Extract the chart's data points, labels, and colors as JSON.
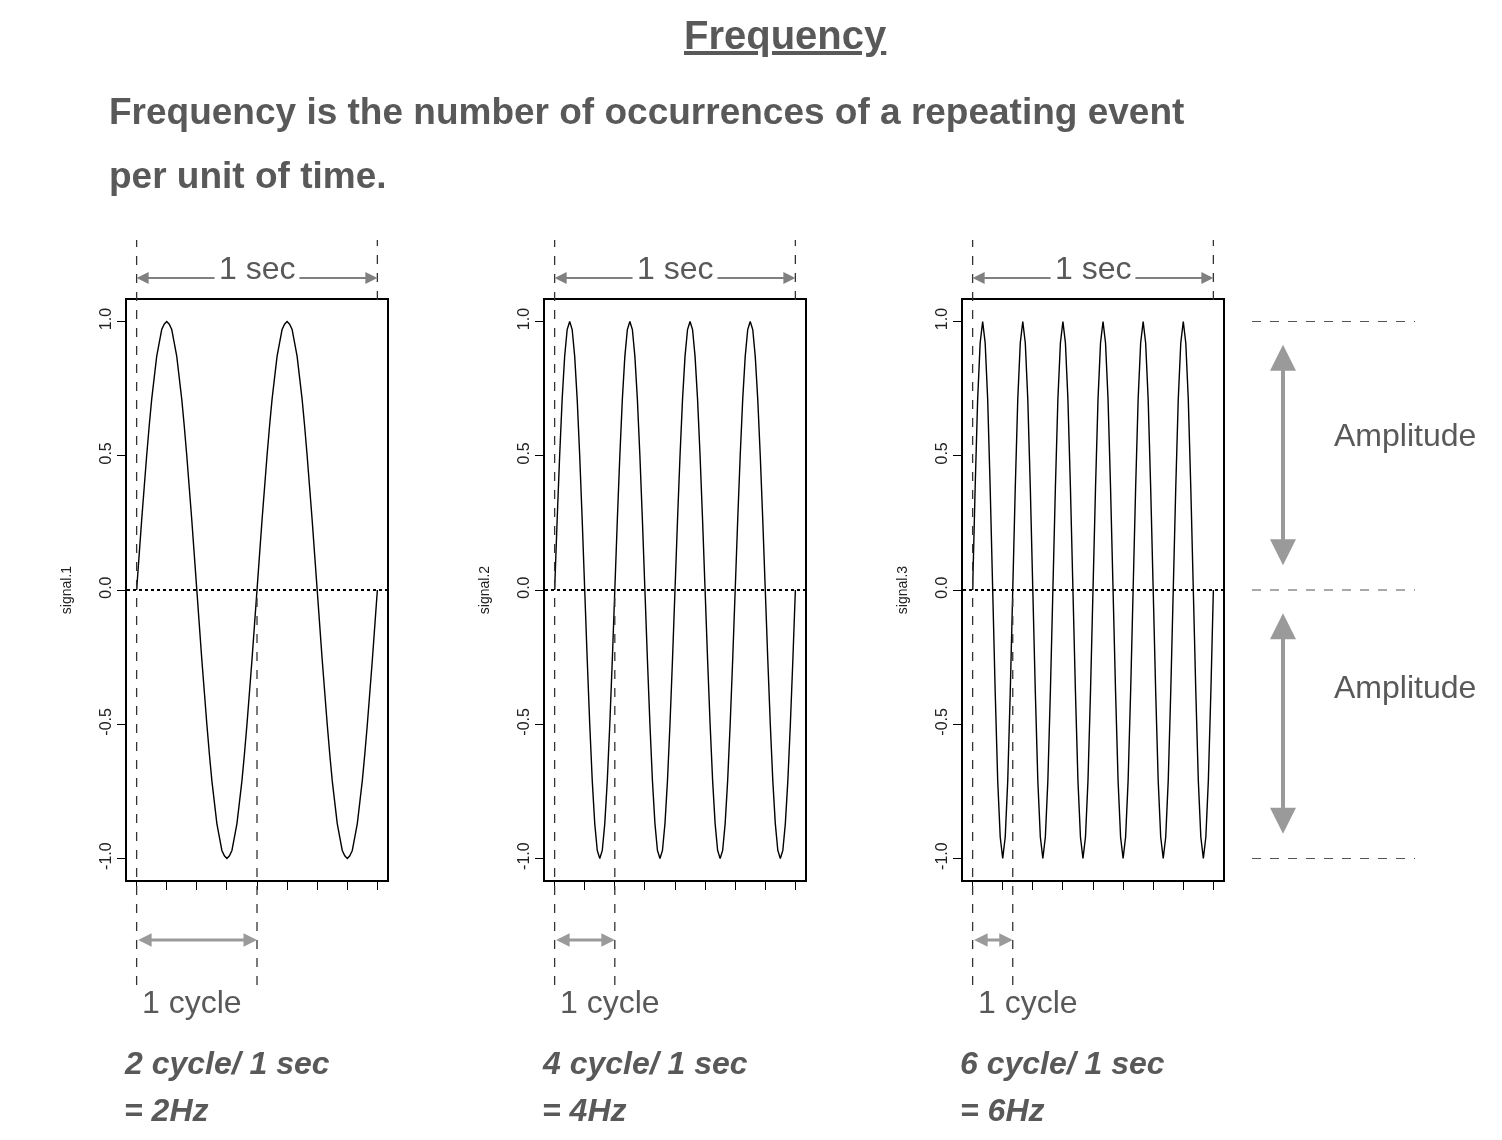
{
  "chart_data": [
    {
      "type": "line",
      "ylabel": "signal.1",
      "categories": [
        null,
        null,
        null,
        null,
        null,
        null,
        null,
        null,
        null,
        null,
        null,
        null,
        null,
        null,
        null,
        null,
        null,
        null,
        null,
        null,
        null,
        null,
        null,
        null,
        null,
        null,
        null,
        null,
        null,
        null,
        null,
        null,
        null,
        null,
        null,
        null,
        null,
        null,
        null,
        null,
        null,
        null,
        null,
        null,
        null,
        null,
        null,
        null,
        null,
        null,
        null,
        null,
        null,
        null,
        null,
        null,
        null,
        null,
        null,
        null,
        null,
        null,
        null,
        null,
        null,
        null,
        null,
        null,
        null,
        null,
        null,
        null,
        null,
        null,
        null,
        null,
        null,
        null,
        null,
        null,
        null,
        null,
        null,
        null,
        null,
        null,
        null,
        null,
        null,
        null,
        null,
        null,
        null,
        null,
        null,
        null,
        null
      ],
      "series": [
        {
          "color": "#000000",
          "values": [
            0,
            0.13,
            0.26,
            0.38,
            0.5,
            0.61,
            0.71,
            0.79,
            0.87,
            0.92,
            0.97,
            0.99,
            1,
            0.99,
            0.97,
            0.92,
            0.87,
            0.79,
            0.71,
            0.61,
            0.5,
            0.38,
            0.26,
            0.13,
            0,
            -0.13,
            -0.26,
            -0.38,
            -0.5,
            -0.61,
            -0.71,
            -0.79,
            -0.87,
            -0.92,
            -0.97,
            -0.99,
            -1,
            -0.99,
            -0.97,
            -0.92,
            -0.87,
            -0.79,
            -0.71,
            -0.61,
            -0.5,
            -0.38,
            -0.26,
            -0.13,
            0,
            0.13,
            0.26,
            0.38,
            0.5,
            0.61,
            0.71,
            0.79,
            0.87,
            0.92,
            0.97,
            0.99,
            1,
            0.99,
            0.97,
            0.92,
            0.87,
            0.79,
            0.71,
            0.61,
            0.5,
            0.38,
            0.26,
            0.13,
            0,
            -0.13,
            -0.26,
            -0.38,
            -0.5,
            -0.61,
            -0.71,
            -0.79,
            -0.87,
            -0.92,
            -0.97,
            -0.99,
            -1,
            -0.99,
            -0.97,
            -0.92,
            -0.87,
            -0.79,
            -0.71,
            -0.61,
            -0.5,
            -0.38,
            -0.26,
            -0.13,
            0
          ]
        }
      ],
      "ylim": [
        -1.08,
        1.08
      ],
      "yticks": [
        {
          "value": -1,
          "label": "-1.0"
        },
        {
          "value": -0.5,
          "label": "-0.5"
        },
        {
          "value": 0,
          "label": "0.0"
        },
        {
          "value": 0.5,
          "label": "0.5"
        },
        {
          "value": 1,
          "label": "1.0"
        }
      ],
      "ref_lines": [
        {
          "axis": "y",
          "value": 0,
          "line_style": "dotted"
        }
      ],
      "tick_labels": "y",
      "line_style": "solid",
      "marker": "none",
      "annotations": [
        "1 sec",
        "1 cycle",
        "2 cycle/ 1 sec",
        "= 2Hz"
      ]
    },
    {
      "type": "line",
      "title": "Frequency",
      "subtitle": "Frequency is the number of occurrences of a repeating event per unit of time.",
      "ylabel": "signal.2",
      "categories": [
        null,
        null,
        null,
        null,
        null,
        null,
        null,
        null,
        null,
        null,
        null,
        null,
        null,
        null,
        null,
        null,
        null,
        null,
        null,
        null,
        null,
        null,
        null,
        null,
        null,
        null,
        null,
        null,
        null,
        null,
        null,
        null,
        null,
        null,
        null,
        null,
        null,
        null,
        null,
        null,
        null,
        null,
        null,
        null,
        null,
        null,
        null,
        null,
        null,
        null,
        null,
        null,
        null,
        null,
        null,
        null,
        null,
        null,
        null,
        null,
        null,
        null,
        null,
        null,
        null,
        null,
        null,
        null,
        null,
        null,
        null,
        null,
        null,
        null,
        null,
        null,
        null,
        null,
        null,
        null,
        null,
        null,
        null,
        null,
        null,
        null,
        null,
        null,
        null,
        null,
        null,
        null,
        null,
        null,
        null,
        null,
        null
      ],
      "series": [
        {
          "color": "#000000",
          "values": [
            0,
            0.26,
            0.5,
            0.71,
            0.87,
            0.97,
            1,
            0.97,
            0.87,
            0.71,
            0.5,
            0.26,
            0,
            -0.26,
            -0.5,
            -0.71,
            -0.87,
            -0.97,
            -1,
            -0.97,
            -0.87,
            -0.71,
            -0.5,
            -0.26,
            0,
            0.26,
            0.5,
            0.71,
            0.87,
            0.97,
            1,
            0.97,
            0.87,
            0.71,
            0.5,
            0.26,
            0,
            -0.26,
            -0.5,
            -0.71,
            -0.87,
            -0.97,
            -1,
            -0.97,
            -0.87,
            -0.71,
            -0.5,
            -0.26,
            0,
            0.26,
            0.5,
            0.71,
            0.87,
            0.97,
            1,
            0.97,
            0.87,
            0.71,
            0.5,
            0.26,
            0,
            -0.26,
            -0.5,
            -0.71,
            -0.87,
            -0.97,
            -1,
            -0.97,
            -0.87,
            -0.71,
            -0.5,
            -0.26,
            0,
            0.26,
            0.5,
            0.71,
            0.87,
            0.97,
            1,
            0.97,
            0.87,
            0.71,
            0.5,
            0.26,
            0,
            -0.26,
            -0.5,
            -0.71,
            -0.87,
            -0.97,
            -1,
            -0.97,
            -0.87,
            -0.71,
            -0.5,
            -0.26,
            0
          ]
        }
      ],
      "ylim": [
        -1.08,
        1.08
      ],
      "yticks": [
        {
          "value": -1,
          "label": "-1.0"
        },
        {
          "value": -0.5,
          "label": "-0.5"
        },
        {
          "value": 0,
          "label": "0.0"
        },
        {
          "value": 0.5,
          "label": "0.5"
        },
        {
          "value": 1,
          "label": "1.0"
        }
      ],
      "ref_lines": [
        {
          "axis": "y",
          "value": 0,
          "line_style": "dotted"
        }
      ],
      "tick_labels": "y",
      "line_style": "solid",
      "marker": "none",
      "annotations": [
        "1 sec",
        "1 cycle",
        "4 cycle/ 1 sec",
        "= 4Hz"
      ]
    },
    {
      "type": "line",
      "ylabel": "signal.3",
      "categories": [
        null,
        null,
        null,
        null,
        null,
        null,
        null,
        null,
        null,
        null,
        null,
        null,
        null,
        null,
        null,
        null,
        null,
        null,
        null,
        null,
        null,
        null,
        null,
        null,
        null,
        null,
        null,
        null,
        null,
        null,
        null,
        null,
        null,
        null,
        null,
        null,
        null,
        null,
        null,
        null,
        null,
        null,
        null,
        null,
        null,
        null,
        null,
        null,
        null,
        null,
        null,
        null,
        null,
        null,
        null,
        null,
        null,
        null,
        null,
        null,
        null,
        null,
        null,
        null,
        null,
        null,
        null,
        null,
        null,
        null,
        null,
        null,
        null,
        null,
        null,
        null,
        null,
        null,
        null,
        null,
        null,
        null,
        null,
        null,
        null,
        null,
        null,
        null,
        null,
        null,
        null,
        null,
        null,
        null,
        null,
        null,
        null
      ],
      "series": [
        {
          "color": "#000000",
          "values": [
            0,
            0.38,
            0.71,
            0.92,
            1,
            0.92,
            0.71,
            0.38,
            0,
            -0.38,
            -0.71,
            -0.92,
            -1,
            -0.92,
            -0.71,
            -0.38,
            0,
            0.38,
            0.71,
            0.92,
            1,
            0.92,
            0.71,
            0.38,
            0,
            -0.38,
            -0.71,
            -0.92,
            -1,
            -0.92,
            -0.71,
            -0.38,
            0,
            0.38,
            0.71,
            0.92,
            1,
            0.92,
            0.71,
            0.38,
            0,
            -0.38,
            -0.71,
            -0.92,
            -1,
            -0.92,
            -0.71,
            -0.38,
            0,
            0.38,
            0.71,
            0.92,
            1,
            0.92,
            0.71,
            0.38,
            0,
            -0.38,
            -0.71,
            -0.92,
            -1,
            -0.92,
            -0.71,
            -0.38,
            0,
            0.38,
            0.71,
            0.92,
            1,
            0.92,
            0.71,
            0.38,
            0,
            -0.38,
            -0.71,
            -0.92,
            -1,
            -0.92,
            -0.71,
            -0.38,
            0,
            0.38,
            0.71,
            0.92,
            1,
            0.92,
            0.71,
            0.38,
            0,
            -0.38,
            -0.71,
            -0.92,
            -1,
            -0.92,
            -0.71,
            -0.38,
            0
          ]
        }
      ],
      "ylim": [
        -1.08,
        1.08
      ],
      "yticks": [
        {
          "value": -1,
          "label": "-1.0"
        },
        {
          "value": -0.5,
          "label": "-0.5"
        },
        {
          "value": 0,
          "label": "0.0"
        },
        {
          "value": 0.5,
          "label": "0.5"
        },
        {
          "value": 1,
          "label": "1.0"
        }
      ],
      "ref_lines": [
        {
          "axis": "y",
          "value": 0,
          "line_style": "dotted"
        }
      ],
      "tick_labels": "y",
      "line_style": "solid",
      "marker": "none",
      "annotations": [
        "1 sec",
        "1 cycle",
        "6 cycle/ 1 sec",
        "= 6Hz",
        "Amplitude",
        "Amplitude"
      ]
    }
  ]
}
